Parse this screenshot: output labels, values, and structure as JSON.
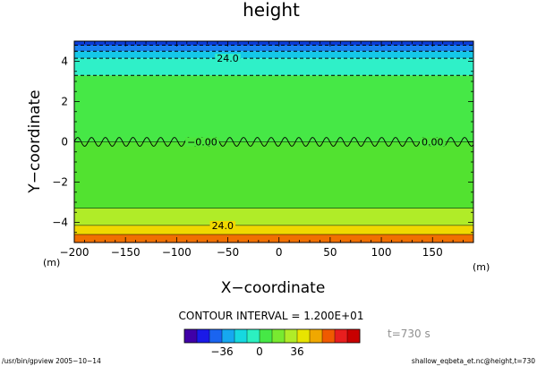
{
  "chart_data": {
    "type": "heatmap",
    "title": "height",
    "xlabel": "X−coordinate",
    "ylabel": "Y−coordinate",
    "x_unit": "(m)",
    "y_unit": "(m)",
    "xlim": [
      -200,
      190
    ],
    "ylim": [
      -5,
      5
    ],
    "x_ticks": [
      -200,
      -150,
      -100,
      -50,
      0,
      50,
      100,
      150
    ],
    "y_ticks": [
      -4,
      -2,
      0,
      2,
      4
    ],
    "contour_interval_text": "CONTOUR INTERVAL = 1.200E+01",
    "contour_labels": [
      {
        "text": "24.0",
        "x": -50,
        "y": 4.15
      },
      {
        "text": "−0.00",
        "x": -75,
        "y": 0
      },
      {
        "text": "0.00",
        "x": 150,
        "y": 0
      },
      {
        "text": "24.0",
        "x": -55,
        "y": -4.15
      }
    ],
    "bands": [
      {
        "y0": 4.8,
        "y1": 5.0,
        "color": "#0a3cd8"
      },
      {
        "y0": 4.5,
        "y1": 4.8,
        "color": "#1a82f0"
      },
      {
        "y0": 4.15,
        "y1": 4.5,
        "color": "#14c8e8"
      },
      {
        "y0": 3.3,
        "y1": 4.15,
        "color": "#2ff0c8"
      },
      {
        "y0": 0.0,
        "y1": 3.3,
        "color": "#46e846"
      },
      {
        "y0": -3.3,
        "y1": 0.0,
        "color": "#52e230"
      },
      {
        "y0": -4.15,
        "y1": -3.3,
        "color": "#b0ec28"
      },
      {
        "y0": -4.6,
        "y1": -4.15,
        "color": "#f0d800"
      },
      {
        "y0": -5.0,
        "y1": -4.6,
        "color": "#f07000"
      }
    ],
    "colorbar": {
      "ticks": [
        "−36",
        "0",
        "36"
      ],
      "colors": [
        "#4000a8",
        "#1a1ae8",
        "#1a64f0",
        "#16a8f0",
        "#16d8e0",
        "#2cf0c0",
        "#46e846",
        "#78ea30",
        "#b0ec28",
        "#e8e400",
        "#f0a800",
        "#f05a00",
        "#e81e1e",
        "#c80000"
      ]
    },
    "time_label": "t=730 s",
    "footer_left": "/usr/bin/gpview  2005−10−14",
    "footer_right": "shallow_eqbeta_et.nc@height,t=730"
  }
}
